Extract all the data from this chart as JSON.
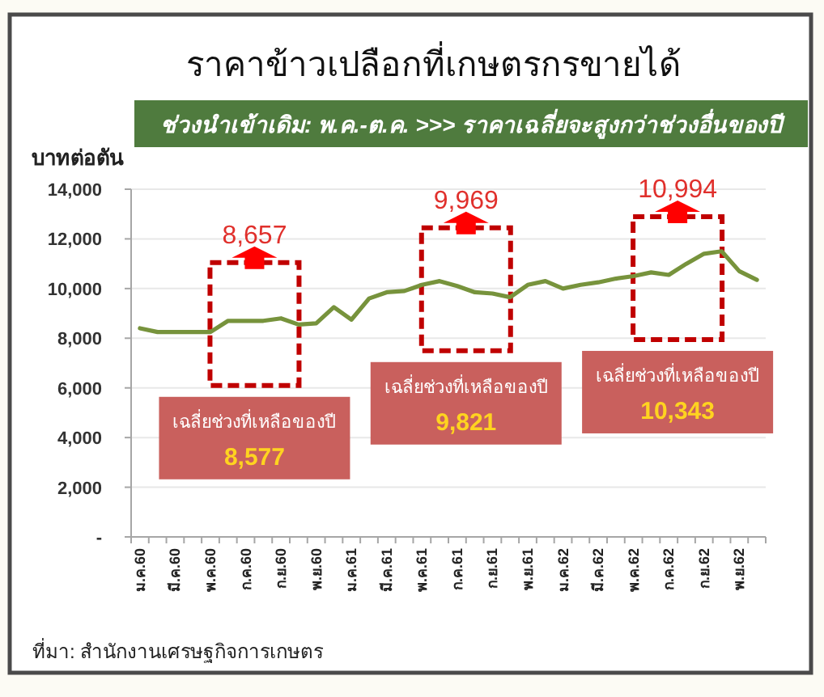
{
  "chart_data": {
    "type": "line",
    "title": "ราคาข้าวเปลือกที่เกษตรกรขายได้",
    "subtitle": "ช่วงนำเข้าเดิม: พ.ค.-ต.ค. >>> ราคาเฉลี่ยจะสูงกว่าช่วงอื่นของปี",
    "ylabel": "บาทต่อตัน",
    "categories": [
      "ม.ค.60",
      null,
      "มี.ค.60",
      null,
      "พ.ค.60",
      null,
      "ก.ค.60",
      null,
      "ก.ย.60",
      null,
      "พ.ย.60",
      null,
      "ม.ค.61",
      null,
      "มี.ค.61",
      null,
      "พ.ค.61",
      null,
      "ก.ค.61",
      null,
      "ก.ย.61",
      null,
      "พ.ย.61",
      null,
      "ม.ค.62",
      null,
      "มี.ค.62",
      null,
      "พ.ค.62",
      null,
      "ก.ค.62",
      null,
      "ก.ย.62",
      null,
      "พ.ย.62",
      null
    ],
    "series": [
      {
        "color": "#77933c",
        "values": [
          8400,
          8250,
          8250,
          8250,
          8250,
          8700,
          8700,
          8700,
          8800,
          8550,
          8600,
          9250,
          8750,
          9600,
          9850,
          9900,
          10150,
          10300,
          10100,
          9850,
          9800,
          9650,
          10150,
          10300,
          10000,
          10150,
          10250,
          10400,
          10500,
          10650,
          10550,
          11000,
          11400,
          11500,
          10700,
          10350
        ]
      }
    ],
    "ylim": [
      0,
      14000
    ],
    "yticks": [
      {
        "value": 0,
        "label": "-"
      },
      {
        "value": 2000,
        "label": "2,000"
      },
      {
        "value": 4000,
        "label": "4,000"
      },
      {
        "value": 6000,
        "label": "6,000"
      },
      {
        "value": 8000,
        "label": "8,000"
      },
      {
        "value": 10000,
        "label": "10,000"
      },
      {
        "value": 12000,
        "label": "12,000"
      },
      {
        "value": 14000,
        "label": "14,000"
      }
    ],
    "grid": "y",
    "annotations": [
      {
        "text": "8,657",
        "x": "ก.ค.60",
        "y": 8700
      },
      "เฉลี่ยช่วงที่เหลือของปี\n8,577",
      {
        "text": "9,969",
        "x": "ก.ค.61",
        "y": 10100
      },
      "เฉลี่ยช่วงที่เหลือของปี\n9,821",
      {
        "text": "10,994",
        "x": "ก.ค.62",
        "y": 10550
      },
      "เฉลี่ยช่วงที่เหลือของปี\n10,343",
      "ที่มา: สำนักงานเศรษฐกิจการเกษตร"
    ]
  }
}
